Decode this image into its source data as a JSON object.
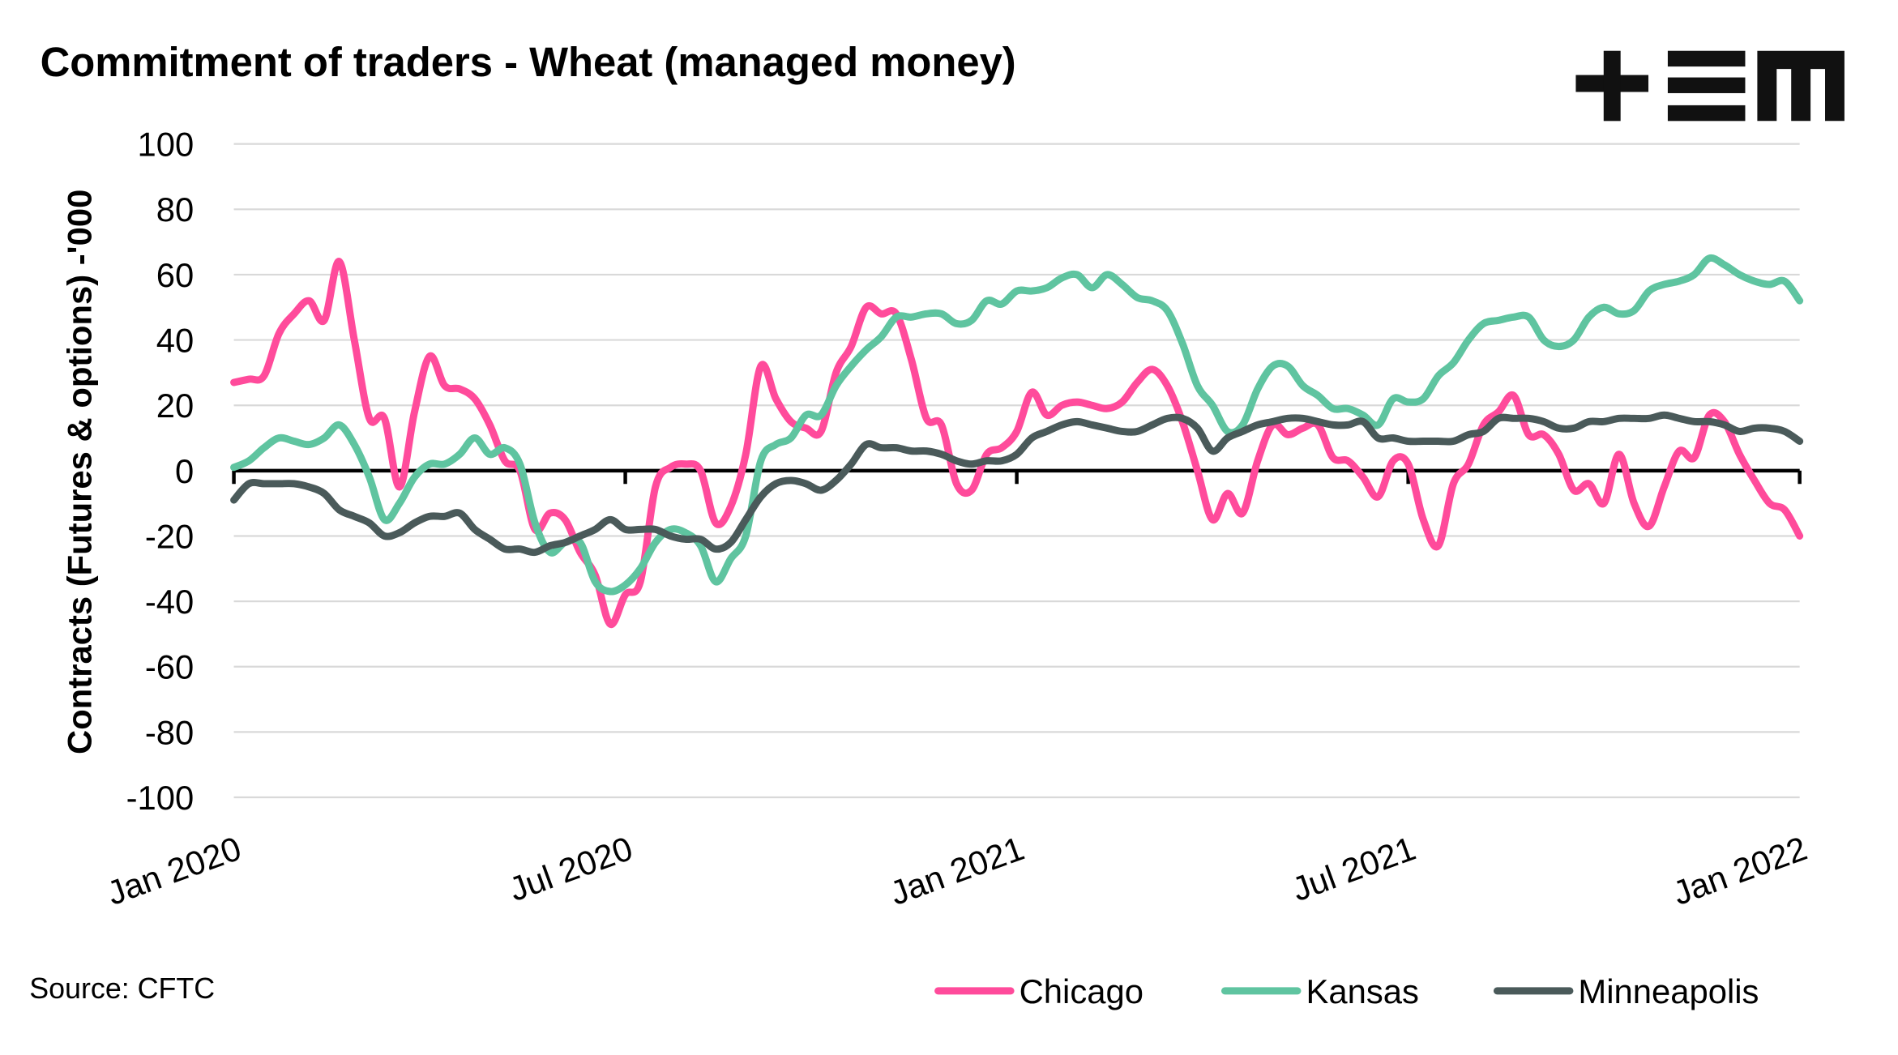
{
  "chart_data": {
    "type": "line",
    "title": "Commitment of traders - Wheat (managed money)",
    "y_label": "Contracts (Futures & options) -'000",
    "source": "Source: CFTC",
    "categories": [
      "Jan 2020",
      null,
      null,
      null,
      null,
      null,
      null,
      null,
      null,
      null,
      null,
      null,
      null,
      null,
      null,
      null,
      null,
      null,
      null,
      null,
      null,
      null,
      null,
      null,
      null,
      null,
      "Jul 2020",
      null,
      null,
      null,
      null,
      null,
      null,
      null,
      null,
      null,
      null,
      null,
      null,
      null,
      null,
      null,
      null,
      null,
      null,
      null,
      null,
      null,
      null,
      null,
      null,
      null,
      "Jan 2021",
      null,
      null,
      null,
      null,
      null,
      null,
      null,
      null,
      null,
      null,
      null,
      null,
      null,
      null,
      null,
      null,
      null,
      null,
      null,
      null,
      null,
      null,
      null,
      null,
      null,
      "Jul 2021",
      null,
      null,
      null,
      null,
      null,
      null,
      null,
      null,
      null,
      null,
      null,
      null,
      null,
      null,
      null,
      null,
      null,
      null,
      null,
      null,
      null,
      null,
      null,
      null,
      null,
      "Jan 2022"
    ],
    "series": [
      {
        "name": "Chicago",
        "color": "#ff4b9b",
        "values": [
          27,
          28,
          29,
          42,
          48,
          52,
          46,
          64,
          40,
          16,
          16,
          -5,
          18,
          35,
          26,
          25,
          22,
          14,
          3,
          0,
          -18,
          -13,
          -15,
          -25,
          -32,
          -47,
          -38,
          -34,
          -5,
          1,
          2,
          0,
          -16,
          -11,
          5,
          32,
          22,
          15,
          13,
          12,
          30,
          38,
          50,
          48,
          48,
          34,
          16,
          14,
          -4,
          -6,
          5,
          7,
          12,
          24,
          17,
          20,
          21,
          20,
          19,
          21,
          27,
          31,
          26,
          15,
          0,
          -15,
          -7,
          -13,
          3,
          14,
          11,
          13,
          14,
          4,
          3,
          -2,
          -8,
          3,
          2,
          -15,
          -23,
          -4,
          2,
          14,
          18,
          23,
          11,
          11,
          5,
          -6,
          -4,
          -10,
          5,
          -10,
          -17,
          -5,
          6,
          4,
          17,
          15,
          5,
          -3,
          -10,
          -12,
          -20
        ]
      },
      {
        "name": "Kansas",
        "color": "#5fc4a0",
        "values": [
          1,
          3,
          7,
          10,
          9,
          8,
          10,
          14,
          8,
          -2,
          -15,
          -10,
          -2,
          2,
          2,
          5,
          10,
          5,
          7,
          2,
          -16,
          -25,
          -22,
          -22,
          -34,
          -37,
          -35,
          -30,
          -22,
          -18,
          -19,
          -23,
          -34,
          -27,
          -20,
          3,
          8,
          10,
          17,
          17,
          26,
          32,
          37,
          41,
          47,
          47,
          48,
          48,
          45,
          46,
          52,
          51,
          55,
          55,
          56,
          59,
          60,
          56,
          60,
          57,
          53,
          52,
          49,
          39,
          26,
          20,
          12,
          14,
          25,
          32,
          32,
          26,
          23,
          19,
          19,
          17,
          14,
          22,
          21,
          22,
          29,
          33,
          40,
          45,
          46,
          47,
          47,
          40,
          38,
          40,
          47,
          50,
          48,
          49,
          55,
          57,
          58,
          60,
          65,
          63,
          60,
          58,
          57,
          58,
          52
        ]
      },
      {
        "name": "Minneapolis",
        "color": "#4a5a5a",
        "values": [
          -9,
          -4,
          -4,
          -4,
          -4,
          -5,
          -7,
          -12,
          -14,
          -16,
          -20,
          -19,
          -16,
          -14,
          -14,
          -13,
          -18,
          -21,
          -24,
          -24,
          -25,
          -23,
          -22,
          -20,
          -18,
          -15,
          -18,
          -18,
          -18,
          -20,
          -21,
          -21,
          -24,
          -22,
          -15,
          -8,
          -4,
          -3,
          -4,
          -6,
          -3,
          2,
          8,
          7,
          7,
          6,
          6,
          5,
          3,
          2,
          3,
          3,
          5,
          10,
          12,
          14,
          15,
          14,
          13,
          12,
          12,
          14,
          16,
          16,
          13,
          6,
          10,
          12,
          14,
          15,
          16,
          16,
          15,
          14,
          14,
          15,
          10,
          10,
          9,
          9,
          9,
          9,
          11,
          12,
          16,
          16,
          16,
          15,
          13,
          13,
          15,
          15,
          16,
          16,
          16,
          17,
          16,
          15,
          15,
          14,
          12,
          13,
          13,
          12,
          9
        ]
      }
    ],
    "ylim": [
      -100,
      100
    ],
    "yticks": [
      100,
      80,
      60,
      40,
      20,
      0,
      -20,
      -40,
      -60,
      -80,
      -100
    ],
    "grid": true,
    "legend": "bottom"
  }
}
